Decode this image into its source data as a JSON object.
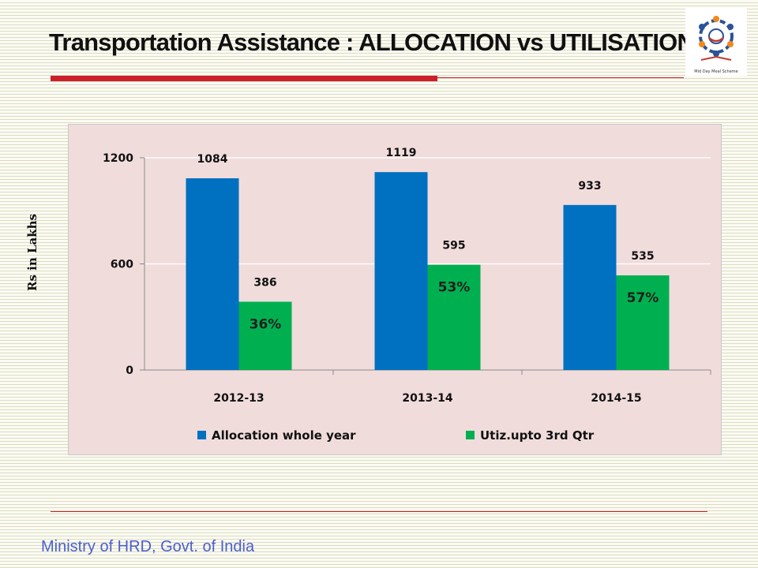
{
  "page": {
    "title": "Transportation Assistance : ALLOCATION vs UTILISATION",
    "footer": "Ministry of HRD, Govt. of India",
    "logo_text": "Mid Day Meal Scheme"
  },
  "chart_data": {
    "type": "bar",
    "title": "",
    "ylabel": "Rs in Lakhs",
    "xlabel": "",
    "categories": [
      "2012-13",
      "2013-14",
      "2014-15"
    ],
    "series": [
      {
        "name": "Allocation whole year",
        "color": "#0070c0",
        "values": [
          1084,
          1119,
          933
        ]
      },
      {
        "name": "Utiz.upto 3rd Qtr",
        "color": "#00b050",
        "values": [
          386,
          595,
          535
        ]
      }
    ],
    "percent_labels": [
      "36%",
      "53%",
      "57%"
    ],
    "ylim": [
      0,
      1200
    ],
    "yticks": [
      0,
      600,
      1200
    ],
    "grid": true,
    "legend": "bottom"
  }
}
